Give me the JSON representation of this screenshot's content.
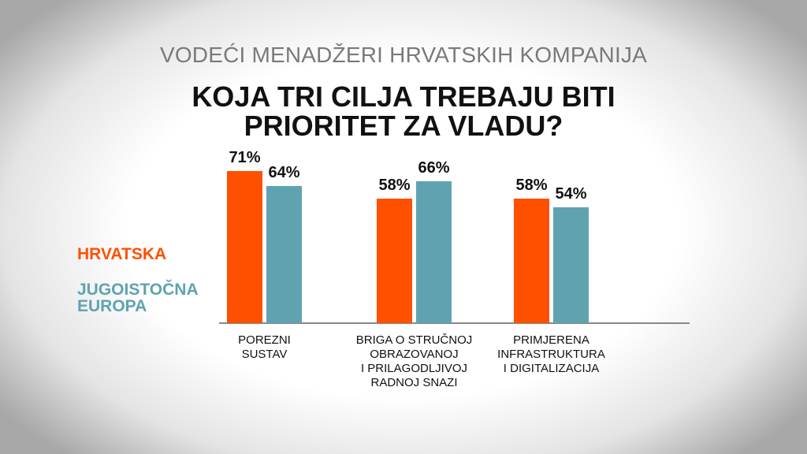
{
  "chart_data": {
    "type": "bar",
    "subtitle": "VODEĆI MENADŽERI HRVATSKIH KOMPANIJA",
    "title": "KOJA TRI CILJA TREBAJU BITI\nPRIORITET ZA VLADU?",
    "categories": [
      "POREZNI\nSUSTAV",
      "BRIGA O STRUČNOJ\nOBRAZOVANOJ\nI PRILAGODLJIVOJ\nRADNOJ SNAZI",
      "PRIMJERENA\nINFRASTRUKTURA\nI DIGITALIZACIJA"
    ],
    "series": [
      {
        "name": "HRVATSKA",
        "color": "#ff5000",
        "values": [
          71,
          58,
          58
        ],
        "value_labels": [
          "71%",
          "58%",
          "58%"
        ]
      },
      {
        "name": "JUGOISTOČNA\nEUROPA",
        "color": "#5fa3b0",
        "values": [
          64,
          66,
          54
        ],
        "value_labels": [
          "64%",
          "66%",
          "54%"
        ]
      }
    ]
  }
}
